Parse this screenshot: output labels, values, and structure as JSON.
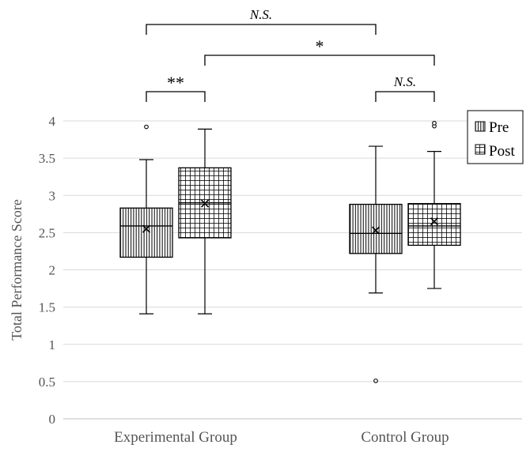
{
  "chart_data": {
    "type": "box",
    "ylabel": "Total Performance Score",
    "ylim": [
      0,
      4
    ],
    "yticks": [
      "0",
      "0.5",
      "1",
      "1.5",
      "2",
      "2.5",
      "3",
      "3.5",
      "4"
    ],
    "grid": true,
    "legend_position": "top-right",
    "categories": [
      "Experimental Group",
      "Control Group"
    ],
    "series": [
      {
        "name": "Pre",
        "pattern": "vertical-lines",
        "boxes": [
          {
            "min": 1.41,
            "q1": 2.17,
            "median": 2.59,
            "q3": 2.83,
            "max": 3.48,
            "mean": 2.55,
            "outliers": [
              3.92
            ]
          },
          {
            "min": 1.69,
            "q1": 2.22,
            "median": 2.49,
            "q3": 2.88,
            "max": 3.66,
            "mean": 2.53,
            "outliers": [
              0.51
            ]
          }
        ]
      },
      {
        "name": "Post",
        "pattern": "grid",
        "boxes": [
          {
            "min": 1.41,
            "q1": 2.43,
            "median": 2.9,
            "q3": 3.37,
            "max": 3.89,
            "mean": 2.89,
            "outliers": []
          },
          {
            "min": 1.75,
            "q1": 2.33,
            "median": 2.59,
            "q3": 2.89,
            "max": 3.59,
            "mean": 2.65,
            "outliers": [
              3.93,
              3.97
            ]
          }
        ]
      }
    ],
    "significance": [
      {
        "label": "**",
        "italic": false,
        "from": {
          "category": 0,
          "series": 0
        },
        "to": {
          "category": 0,
          "series": 1
        }
      },
      {
        "label": "N.S.",
        "italic": true,
        "from": {
          "category": 1,
          "series": 0
        },
        "to": {
          "category": 1,
          "series": 1
        }
      },
      {
        "label": "*",
        "italic": false,
        "from": {
          "category": 0,
          "series": 1
        },
        "to": {
          "category": 1,
          "series": 1
        }
      },
      {
        "label": "N.S.",
        "italic": true,
        "from": {
          "category": 0,
          "series": 0
        },
        "to": {
          "category": 1,
          "series": 0
        }
      }
    ]
  }
}
